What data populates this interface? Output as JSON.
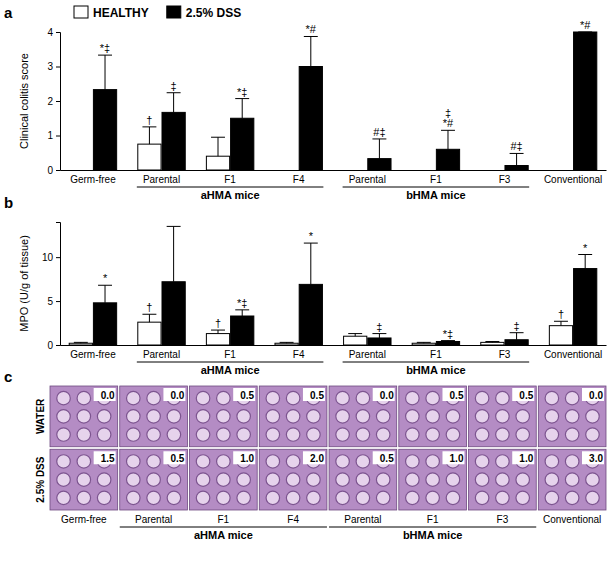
{
  "chart_data": [
    {
      "type": "bar",
      "title": "a",
      "y_label": "Clinical colitis score",
      "categories": [
        "Germ-free",
        "Parental",
        "F1",
        "F4",
        "Parental",
        "F1",
        "F3",
        "Conventional"
      ],
      "groups": [
        null,
        "aHMA mice",
        "aHMA mice",
        "aHMA mice",
        "bHMA mice",
        "bHMA mice",
        "bHMA mice",
        null
      ],
      "series": [
        {
          "name": "HEALTHY",
          "color": "#ffffff",
          "values": [
            0,
            0.75,
            0.4,
            0,
            0,
            0,
            0,
            0
          ],
          "error": [
            null,
            0.5,
            0.55,
            null,
            null,
            null,
            null,
            null
          ],
          "annotations": [
            null,
            "†",
            null,
            null,
            null,
            null,
            null,
            null
          ]
        },
        {
          "name": "2.5% DSS",
          "color": "#000000",
          "values": [
            2.33,
            1.67,
            1.5,
            3.0,
            0.33,
            0.6,
            0.13,
            4.0
          ],
          "error": [
            1.0,
            0.57,
            0.57,
            0.87,
            0.57,
            0.55,
            0.35,
            0
          ],
          "annotations": [
            "*‡",
            "‡",
            "*‡",
            "*#",
            "#‡",
            "‡\n*#",
            "#‡",
            "*#"
          ]
        }
      ],
      "ylim": [
        0,
        4
      ],
      "yticks": [
        0,
        1,
        2,
        3,
        4
      ],
      "legend": "top-left"
    },
    {
      "type": "bar",
      "title": "b",
      "y_label": "MPO (U/g of tissue)",
      "categories": [
        "Germ-free",
        "Parental",
        "F1",
        "F4",
        "Parental",
        "F1",
        "F3",
        "Conventional"
      ],
      "groups": [
        null,
        "aHMA mice",
        "aHMA mice",
        "aHMA mice",
        "bHMA mice",
        "bHMA mice",
        "bHMA mice",
        null
      ],
      "series": [
        {
          "name": "HEALTHY",
          "color": "#ffffff",
          "values": [
            0.2,
            2.6,
            1.3,
            0.2,
            1.0,
            0.2,
            0.3,
            2.2
          ],
          "error": [
            0.1,
            0.9,
            0.4,
            0.1,
            0.3,
            0.1,
            0.1,
            0.5
          ],
          "annotations": [
            null,
            "†",
            "†",
            null,
            null,
            null,
            null,
            "†"
          ]
        },
        {
          "name": "2.5% DSS",
          "color": "#000000",
          "values": [
            4.8,
            7.2,
            3.3,
            6.9,
            0.8,
            0.4,
            0.6,
            8.7
          ],
          "error": [
            2.0,
            6.3,
            0.7,
            4.7,
            0.5,
            0.1,
            0.8,
            1.6
          ],
          "annotations": [
            "*",
            null,
            "*‡",
            "*",
            "‡",
            "*‡",
            "‡",
            "*"
          ]
        }
      ],
      "ylim": [
        0,
        14
      ],
      "yticks": [
        0,
        5,
        10
      ]
    },
    {
      "type": "image_grid",
      "title": "c",
      "color": "#b48cc4",
      "categories": [
        "Germ-free",
        "Parental",
        "F1",
        "F4",
        "Parental",
        "F1",
        "F3",
        "Conventional"
      ],
      "groups": [
        null,
        "aHMA mice",
        "aHMA mice",
        "aHMA mice",
        "bHMA mice",
        "bHMA mice",
        "bHMA mice",
        null
      ],
      "rows": [
        "WATER",
        "2.5% DSS"
      ],
      "values": [
        [
          0,
          0,
          0.5,
          0.5,
          0,
          0.5,
          0.5,
          0
        ],
        [
          1.5,
          0.5,
          1.0,
          2.0,
          0.5,
          1.0,
          1.0,
          3.0
        ]
      ],
      "value_labels": [
        [
          "0.0",
          "0.0",
          "0.5",
          "0.5",
          "0.0",
          "0.5",
          "0.5",
          "0.0"
        ],
        [
          "1.5",
          "0.5",
          "1.0",
          "2.0",
          "0.5",
          "1.0",
          "1.0",
          "3.0"
        ]
      ]
    }
  ]
}
